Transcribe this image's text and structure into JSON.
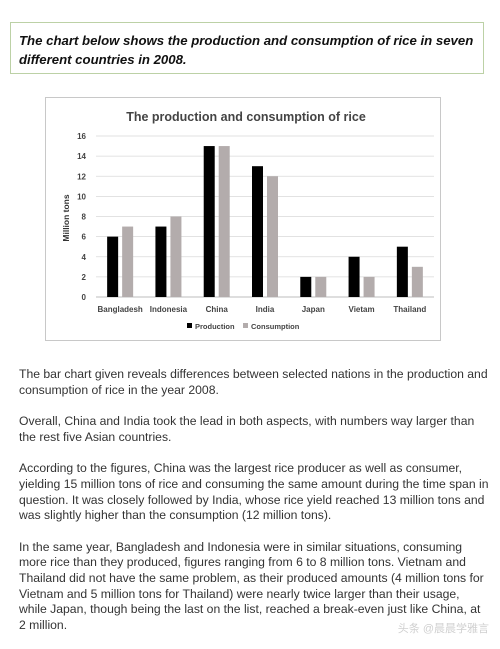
{
  "prompt": "The chart below shows the production and consumption of rice in seven different countries in 2008.",
  "chart_data": {
    "type": "bar",
    "title": "The production and consumption of rice",
    "ylabel": "Million tons",
    "xlabel": "",
    "ylim": [
      0,
      16
    ],
    "yticks": [
      0,
      2,
      4,
      6,
      8,
      10,
      12,
      14,
      16
    ],
    "grid": true,
    "legend": "bottom",
    "categories": [
      "Bangladesh",
      "Indonesia",
      "China",
      "India",
      "Japan",
      "Vietam",
      "Thailand"
    ],
    "series": [
      {
        "name": "Production",
        "color": "#000000",
        "values": [
          6,
          7,
          15,
          13,
          2,
          4,
          5
        ]
      },
      {
        "name": "Consumption",
        "color": "#b3acac",
        "values": [
          7,
          8,
          15,
          12,
          2,
          2,
          3
        ]
      }
    ]
  },
  "paragraphs": [
    "The bar chart given reveals differences between selected nations in the production and consumption of rice in the year 2008.",
    "Overall, China and India took the lead in both aspects, with numbers way larger than the rest five Asian countries.",
    "According to the figures, China was the largest rice producer as well as consumer, yielding 15 million tons of rice and consuming the same amount during the time span in question. It was closely followed by India, whose rice yield reached 13 million tons and was slightly higher than the consumption (12 million tons).",
    "In the same year, Bangladesh and Indonesia were in similar situations, consuming more rice than they produced, figures ranging from 6 to 8 million tons. Vietnam and Thailand did not have the same problem, as their produced amounts (4 million tons for Vietnam and 5 million tons for Thailand) were nearly twice larger than their usage, while Japan, though being the last on the list, reached a break-even just like China, at 2 million."
  ],
  "watermark": "头条 @晨晨学雅言"
}
